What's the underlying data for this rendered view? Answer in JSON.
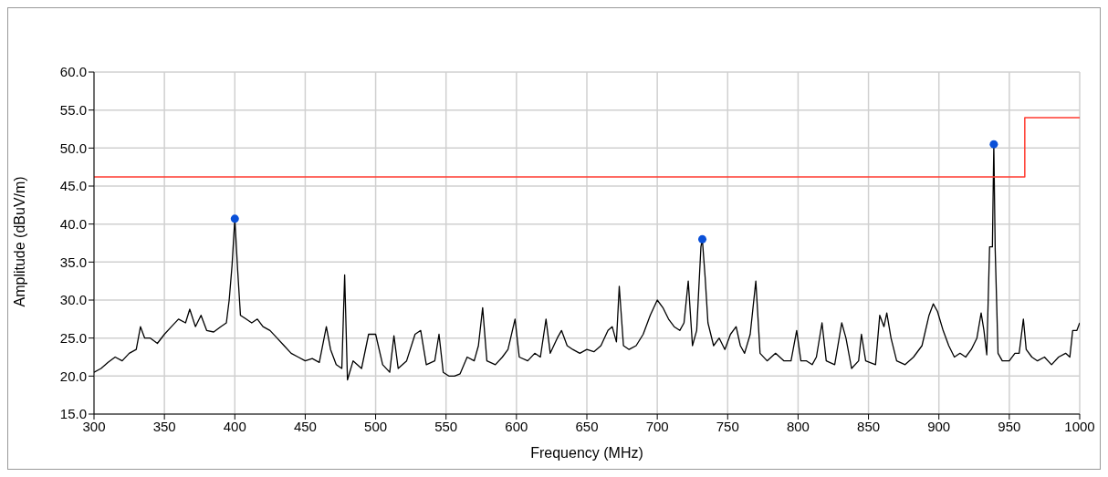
{
  "chart_data": {
    "type": "line",
    "xlabel": "Frequency (MHz)",
    "ylabel": "Amplitude (dBuV/m)",
    "xlim": [
      300,
      1000
    ],
    "xticks": [
      300,
      350,
      400,
      450,
      500,
      550,
      600,
      650,
      700,
      750,
      800,
      850,
      900,
      950,
      1000
    ],
    "ylim": [
      15,
      60
    ],
    "yticks": [
      {
        "value": 15,
        "label": "15.0"
      },
      {
        "value": 20,
        "label": "20.0"
      },
      {
        "value": 25,
        "label": "25.0"
      },
      {
        "value": 30,
        "label": "30.0"
      },
      {
        "value": 35,
        "label": "35.0"
      },
      {
        "value": 40,
        "label": "40.0"
      },
      {
        "value": 45,
        "label": "45.0"
      },
      {
        "value": 50,
        "label": "50.0"
      },
      {
        "value": 55,
        "label": "55.0"
      },
      {
        "value": 60,
        "label": "60.0"
      }
    ],
    "grid": true,
    "series": [
      {
        "color": "#000000",
        "marker": "none",
        "x": [
          300,
          305,
          310,
          315,
          320,
          325,
          330,
          333,
          336,
          340,
          345,
          350,
          355,
          360,
          365,
          368,
          372,
          376,
          380,
          385,
          390,
          394,
          396,
          398,
          400,
          402,
          404,
          408,
          412,
          416,
          420,
          425,
          430,
          435,
          440,
          445,
          450,
          455,
          460,
          465,
          468,
          472,
          476,
          478,
          480,
          484,
          490,
          495,
          500,
          505,
          510,
          513,
          516,
          522,
          528,
          532,
          536,
          542,
          545,
          548,
          552,
          556,
          560,
          565,
          570,
          573,
          576,
          579,
          585,
          590,
          594,
          599,
          602,
          608,
          613,
          617,
          621,
          624,
          629,
          632,
          636,
          640,
          645,
          650,
          655,
          660,
          665,
          668,
          671,
          673,
          676,
          680,
          685,
          690,
          695,
          700,
          704,
          708,
          712,
          716,
          719,
          722,
          725,
          728,
          731,
          732,
          734,
          736,
          740,
          744,
          748,
          752,
          756,
          759,
          762,
          766,
          770,
          773,
          778,
          784,
          790,
          795,
          799,
          802,
          806,
          810,
          813,
          817,
          820,
          826,
          831,
          834,
          838,
          843,
          845,
          848,
          855,
          858,
          861,
          863,
          866,
          870,
          876,
          882,
          888,
          893,
          896,
          899,
          903,
          907,
          911,
          915,
          919,
          923,
          927,
          930,
          932,
          934,
          936,
          938,
          939,
          940,
          942,
          945,
          950,
          954,
          957,
          960,
          962,
          966,
          970,
          975,
          980,
          985,
          990,
          993,
          995,
          998,
          1000
        ],
        "values": [
          20.5,
          21,
          21.8,
          22.5,
          22,
          23,
          23.5,
          26.5,
          25,
          25,
          24.3,
          25.5,
          26.5,
          27.5,
          27,
          28.8,
          26.5,
          28,
          26,
          25.8,
          26.5,
          27,
          30,
          34.5,
          40.7,
          34,
          28,
          27.5,
          27,
          27.5,
          26.5,
          26,
          25,
          24,
          23,
          22.5,
          22,
          22.3,
          21.8,
          26.5,
          23.5,
          21.5,
          21,
          33.3,
          19.5,
          22,
          21,
          25.5,
          25.5,
          21.5,
          20.5,
          25.3,
          21,
          22,
          25.5,
          26,
          21.5,
          22,
          25.5,
          20.5,
          20,
          20,
          20.3,
          22.5,
          22,
          24,
          29,
          22,
          21.5,
          22.5,
          23.5,
          27.5,
          22.5,
          22,
          23,
          22.5,
          27.5,
          23,
          25,
          26,
          24,
          23.5,
          23,
          23.5,
          23.2,
          24,
          26,
          26.5,
          24.5,
          31.8,
          24,
          23.5,
          24,
          25.5,
          28,
          30,
          29,
          27.5,
          26.5,
          26,
          27,
          32.5,
          24,
          26,
          37,
          38,
          33,
          27,
          24,
          25,
          23.5,
          25.5,
          26.5,
          24,
          23,
          25.5,
          32.5,
          23,
          22,
          23,
          22,
          22,
          26,
          22,
          22,
          21.5,
          22.5,
          27,
          22,
          21.5,
          27,
          25,
          21,
          22,
          25.5,
          22,
          21.5,
          28,
          26.5,
          28.3,
          25,
          22,
          21.5,
          22.5,
          24,
          28,
          29.5,
          28.5,
          26,
          24,
          22.5,
          23,
          22.5,
          23.5,
          25,
          28.3,
          26,
          22.8,
          37,
          37,
          50.5,
          36.5,
          23,
          22,
          22,
          23,
          23,
          27.5,
          23.5,
          22.5,
          22,
          22.5,
          21.5,
          22.5,
          23,
          22.5,
          26,
          26,
          27
        ]
      },
      {
        "type": "step",
        "color": "#ff3b30",
        "x": [
          300,
          961,
          1000
        ],
        "values": [
          46.2,
          54.0,
          54.0
        ]
      },
      {
        "type": "scatter",
        "color": "#0a50d8",
        "marker": "circle",
        "x": [
          400,
          732,
          939
        ],
        "values": [
          40.7,
          38.0,
          50.5
        ]
      }
    ]
  }
}
